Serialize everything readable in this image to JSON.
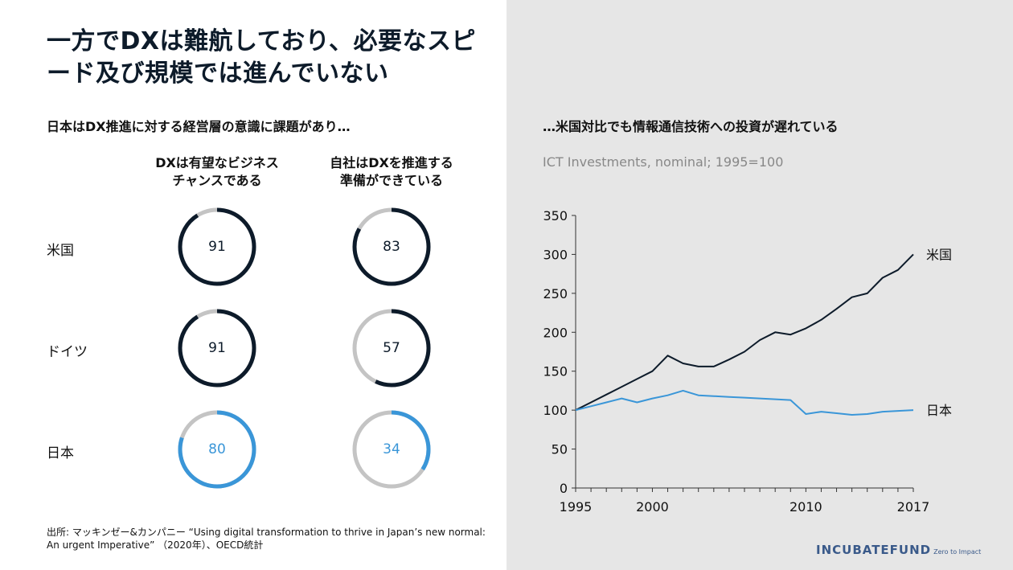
{
  "title": "一方でDXは難航しており、必要なスピード及び規模では進んでいない",
  "left": {
    "subtitle": "日本はDX推進に対する経営層の意識に課題があり…",
    "columns": [
      "DXは有望なビジネスチャンスである",
      "自社はDXを推進する準備ができている"
    ],
    "column_lines": [
      [
        "DXは有望なビジネス",
        "チャンスである"
      ],
      [
        "自社はDXを推進する",
        "準備ができている"
      ]
    ],
    "rows": [
      {
        "label": "米国",
        "values": [
          91,
          83
        ],
        "color": "#0d1b2a"
      },
      {
        "label": "ドイツ",
        "values": [
          91,
          57
        ],
        "color": "#0d1b2a"
      },
      {
        "label": "日本",
        "values": [
          80,
          34
        ],
        "color": "#3a96d8"
      }
    ],
    "track_color": "#c4c4c4"
  },
  "right": {
    "subtitle": "…米国対比でも情報通信技術への投資が遅れている",
    "chart_subtitle": "ICT Investments, nominal; 1995=100"
  },
  "source": "出所: マッキンゼー&カンパニー “Using digital transformation to thrive in Japan’s new normal: An urgent Imperative” （2020年）、OECD統計",
  "logo": {
    "text": "INCUBATEFUND",
    "tagline": "Zero to Impact"
  },
  "chart_data": [
    {
      "type": "pie",
      "title": "DXは有望なビジネスチャンスである",
      "categories": [
        "米国",
        "ドイツ",
        "日本"
      ],
      "values": [
        91,
        91,
        80
      ],
      "unit": "%"
    },
    {
      "type": "pie",
      "title": "自社はDXを推進する準備ができている",
      "categories": [
        "米国",
        "ドイツ",
        "日本"
      ],
      "values": [
        83,
        57,
        34
      ],
      "unit": "%"
    },
    {
      "type": "line",
      "title": "ICT Investments, nominal; 1995=100",
      "x": [
        1995,
        1996,
        1997,
        1998,
        1999,
        2000,
        2001,
        2002,
        2003,
        2004,
        2005,
        2006,
        2007,
        2008,
        2009,
        2010,
        2011,
        2012,
        2013,
        2014,
        2015,
        2016,
        2017
      ],
      "series": [
        {
          "name": "米国",
          "color": "#0d1b2a",
          "values": [
            100,
            110,
            120,
            130,
            140,
            150,
            170,
            160,
            156,
            156,
            165,
            175,
            190,
            200,
            197,
            205,
            216,
            230,
            245,
            250,
            270,
            280,
            300
          ]
        },
        {
          "name": "日本",
          "color": "#3a96d8",
          "values": [
            100,
            105,
            110,
            115,
            110,
            115,
            119,
            125,
            119,
            118,
            117,
            116,
            115,
            114,
            113,
            95,
            98,
            96,
            94,
            95,
            98,
            99,
            100
          ]
        }
      ],
      "xticks": [
        1995,
        2000,
        2010,
        2017
      ],
      "yticks": [
        0,
        50,
        100,
        150,
        200,
        250,
        300,
        350
      ],
      "xlim": [
        1995,
        2017
      ],
      "ylim": [
        0,
        350
      ],
      "grid": false
    }
  ]
}
